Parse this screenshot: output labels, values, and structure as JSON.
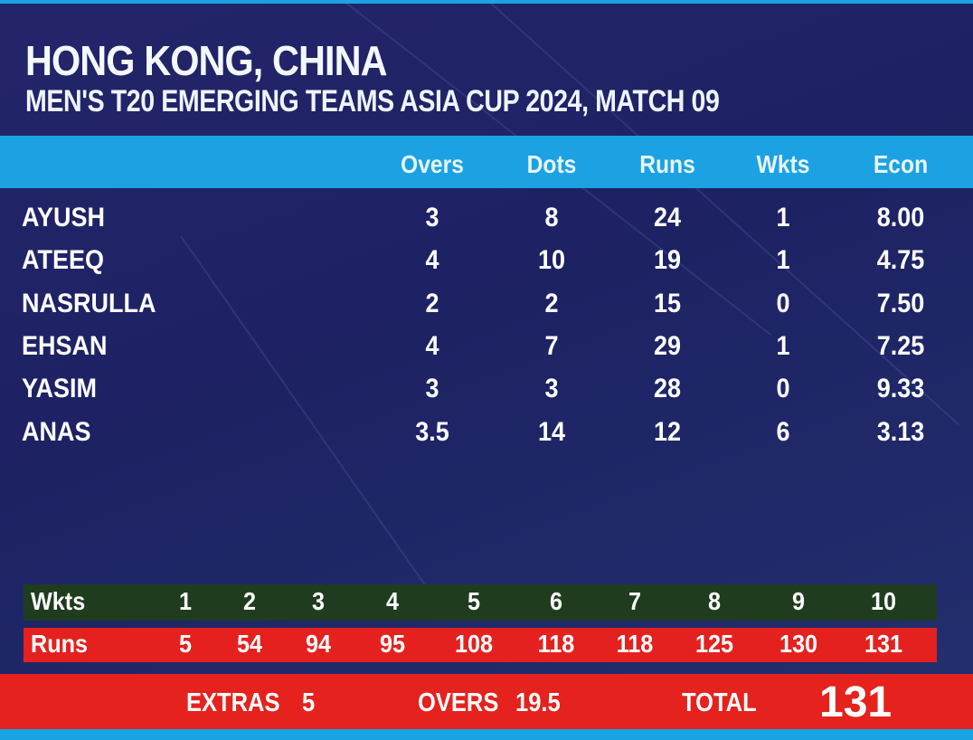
{
  "header": {
    "team": "HONG KONG, CHINA",
    "match": "MEN'S T20 EMERGING TEAMS ASIA CUP 2024, MATCH 09"
  },
  "columns": [
    "Overs",
    "Dots",
    "Runs",
    "Wkts",
    "Econ"
  ],
  "bowlers": [
    {
      "name": "AYUSH",
      "overs": "3",
      "dots": "8",
      "runs": "24",
      "wkts": "1",
      "econ": "8.00"
    },
    {
      "name": "ATEEQ",
      "overs": "4",
      "dots": "10",
      "runs": "19",
      "wkts": "1",
      "econ": "4.75"
    },
    {
      "name": "NASRULLA",
      "overs": "2",
      "dots": "2",
      "runs": "15",
      "wkts": "0",
      "econ": "7.50"
    },
    {
      "name": "EHSAN",
      "overs": "4",
      "dots": "7",
      "runs": "29",
      "wkts": "1",
      "econ": "7.25"
    },
    {
      "name": "YASIM",
      "overs": "3",
      "dots": "3",
      "runs": "28",
      "wkts": "0",
      "econ": "9.33"
    },
    {
      "name": "ANAS",
      "overs": "3.5",
      "dots": "14",
      "runs": "12",
      "wkts": "6",
      "econ": "3.13"
    }
  ],
  "fall_of_wickets": {
    "wkts_label": "Wkts",
    "runs_label": "Runs",
    "wkts": [
      "1",
      "2",
      "3",
      "4",
      "5",
      "6",
      "7",
      "8",
      "9",
      "10"
    ],
    "runs": [
      "5",
      "54",
      "94",
      "95",
      "108",
      "118",
      "118",
      "125",
      "130",
      "131"
    ]
  },
  "summary": {
    "extras_label": "EXTRAS",
    "extras": "5",
    "overs_label": "OVERS",
    "overs": "19.5",
    "total_label": "TOTAL",
    "total": "131"
  },
  "colors": {
    "background": "#1d2263",
    "accent_blue": "#1ca2e2",
    "wkts_bar": "#1f3c1f",
    "runs_bar": "#e4211e"
  }
}
